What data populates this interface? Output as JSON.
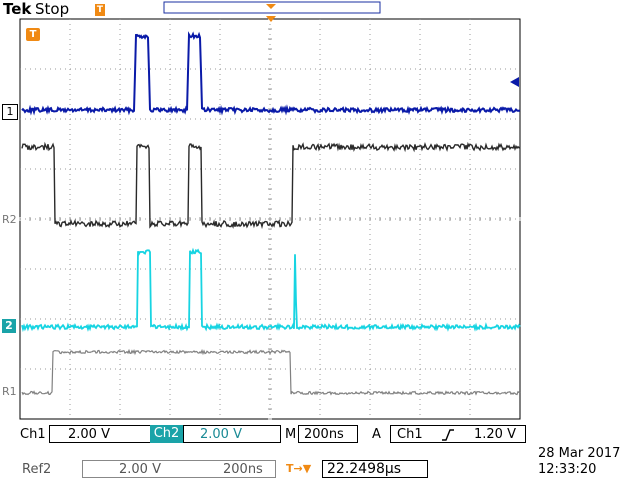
{
  "header": {
    "brand": "Tek",
    "run_state": "Stop",
    "trigger_marker_glyph": "T"
  },
  "colors": {
    "ch1": "#0a1aa8",
    "ch2": "#17d4e2",
    "ref1": "#808080",
    "ref2": "#2a2a2a",
    "trigger": "#f08a14",
    "ch2_label_bg": "#1aa3a8",
    "grid": "#9a9a9a"
  },
  "markers": {
    "ch1_label": "1",
    "ch2_label": "2",
    "ref1_label": "R1",
    "ref2_label": "R2",
    "trigger_tag": "T"
  },
  "status": {
    "ch1_name": "Ch1",
    "ch1_scale": "2.00 V",
    "ch2_name": "Ch2",
    "ch2_scale": "2.00 V",
    "timebase_mode": "M",
    "timebase": "200ns",
    "acq_mode": "A",
    "trigger_source": "Ch1",
    "trigger_slope_icon": "rising-edge-icon",
    "trigger_level": "1.20 V",
    "ref2_name": "Ref2",
    "ref2_scale": "2.00 V",
    "ref2_timebase": "200ns",
    "trigger_position_glyph": "T→▼",
    "trigger_position": "22.2498µs",
    "date": "28 Mar 2017",
    "time": "12:33:20"
  }
}
